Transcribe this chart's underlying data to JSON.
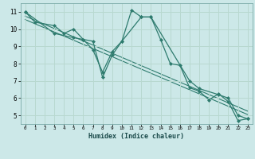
{
  "title": "",
  "xlabel": "Humidex (Indice chaleur)",
  "bg_color": "#cce8e8",
  "grid_color": "#b8d8d0",
  "line_color": "#2e7b6e",
  "xlim": [
    -0.5,
    23.5
  ],
  "ylim": [
    4.5,
    11.5
  ],
  "xticks": [
    0,
    1,
    2,
    3,
    4,
    5,
    6,
    7,
    8,
    9,
    10,
    11,
    12,
    13,
    14,
    15,
    16,
    17,
    18,
    19,
    20,
    21,
    22,
    23
  ],
  "yticks": [
    5,
    6,
    7,
    8,
    9,
    10,
    11
  ],
  "series1": {
    "x": [
      0,
      1,
      3,
      4,
      5,
      6,
      7,
      8,
      9,
      10,
      11,
      12,
      13,
      14,
      15,
      16,
      17,
      18,
      19,
      20,
      21,
      22,
      23
    ],
    "y": [
      11.0,
      10.4,
      10.2,
      9.75,
      10.0,
      9.4,
      9.3,
      7.2,
      8.5,
      9.3,
      11.1,
      10.7,
      10.7,
      9.4,
      8.0,
      7.9,
      6.6,
      6.4,
      5.9,
      6.25,
      5.8,
      4.7,
      4.8
    ]
  },
  "series2": {
    "x": [
      0,
      3,
      5,
      6,
      7,
      8,
      9,
      10,
      12,
      13,
      17,
      18,
      20,
      21,
      22,
      23
    ],
    "y": [
      11.0,
      9.75,
      9.5,
      9.4,
      8.8,
      7.5,
      8.7,
      9.3,
      10.7,
      10.7,
      7.0,
      6.55,
      6.2,
      6.0,
      5.0,
      4.8
    ]
  },
  "trend1": {
    "x": [
      0,
      23
    ],
    "y": [
      10.75,
      5.25
    ]
  },
  "trend2": {
    "x": [
      0,
      23
    ],
    "y": [
      10.55,
      5.05
    ]
  }
}
